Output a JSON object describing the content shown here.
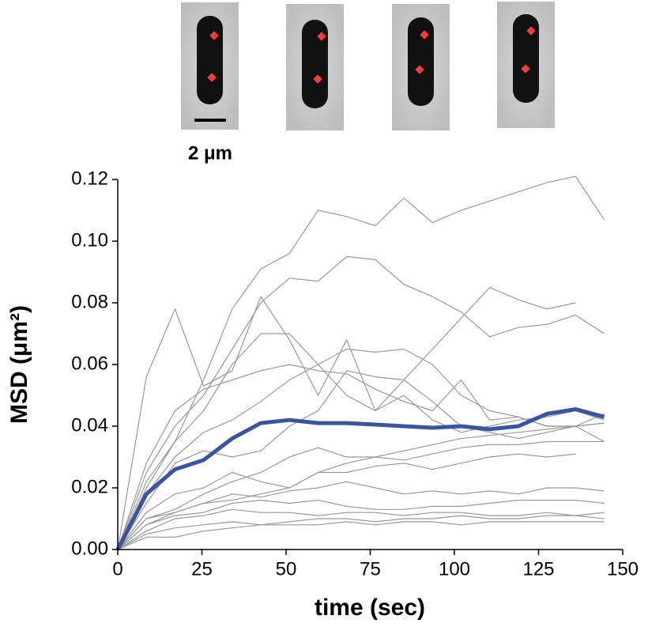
{
  "chart_data": {
    "type": "line",
    "annotation": "2 μm",
    "xlabel": "time (sec)",
    "ylabel": "MSD  (μm²)",
    "x": [
      0,
      8.5,
      17,
      25.5,
      34,
      42.5,
      51,
      59.5,
      68,
      76.5,
      85,
      93.5,
      102,
      110.5,
      119,
      127.5,
      136,
      144.5
    ],
    "xlim": [
      0,
      150
    ],
    "xticks": [
      0,
      25,
      50,
      75,
      100,
      125,
      150
    ],
    "ylim": [
      0,
      0.12
    ],
    "yticks": [
      {
        "value": 0,
        "label": "0.00"
      },
      {
        "value": 0.02,
        "label": "0.02"
      },
      {
        "value": 0.04,
        "label": "0.04"
      },
      {
        "value": 0.06,
        "label": "0.06"
      },
      {
        "value": 0.08,
        "label": "0.08"
      },
      {
        "value": 0.1,
        "label": "0.10"
      },
      {
        "value": 0.12,
        "label": "0.12"
      }
    ],
    "series": [
      {
        "color": "#999999",
        "width": 1.2,
        "values": [
          0,
          0.056,
          0.078,
          0.053,
          0.058,
          0.082,
          0.068,
          0.05,
          0.068,
          0.045,
          0.05,
          0.042,
          0.038,
          0.04,
          0.042,
          0.043,
          0.045,
          0.042
        ]
      },
      {
        "color": "#999999",
        "width": 1.2,
        "values": [
          0,
          0.022,
          0.035,
          0.055,
          0.078,
          0.091,
          0.096,
          0.11,
          0.108,
          0.105,
          0.114,
          0.106,
          0.11,
          0.113,
          0.116,
          0.119,
          0.121,
          0.107
        ]
      },
      {
        "color": "#999999",
        "width": 1.2,
        "values": [
          0,
          0.025,
          0.04,
          0.05,
          0.065,
          0.08,
          0.088,
          0.087,
          0.095,
          0.094,
          0.086,
          0.082,
          0.077,
          0.069,
          0.072,
          0.073,
          0.076,
          0.07
        ]
      },
      {
        "color": "#999999",
        "width": 1.2,
        "values": [
          0,
          0.02,
          0.035,
          0.045,
          0.06,
          0.07,
          0.07,
          0.06,
          0.05,
          0.045,
          0.055,
          0.065,
          0.075,
          0.085,
          0.081,
          0.078,
          0.08,
          null
        ]
      },
      {
        "color": "#999999",
        "width": 1.2,
        "values": [
          0,
          0.028,
          0.045,
          0.052,
          0.055,
          0.058,
          0.06,
          0.058,
          0.057,
          0.052,
          0.048,
          0.045,
          0.055,
          0.042,
          0.043,
          0.04,
          0.04,
          0.041
        ]
      },
      {
        "color": "#999999",
        "width": 1.2,
        "values": [
          0,
          0.018,
          0.03,
          0.038,
          0.042,
          0.048,
          0.055,
          0.06,
          0.065,
          0.064,
          0.065,
          0.06,
          0.05,
          0.045,
          0.043,
          0.04,
          0.04,
          0.044
        ]
      },
      {
        "color": "#999999",
        "width": 1.2,
        "values": [
          0,
          0.015,
          0.028,
          0.032,
          0.03,
          0.032,
          0.04,
          0.045,
          0.058,
          0.056,
          0.055,
          0.048,
          0.04,
          0.038,
          0.036,
          0.038,
          0.04,
          0.035
        ]
      },
      {
        "color": "#999999",
        "width": 1.2,
        "values": [
          0,
          0.01,
          0.013,
          0.018,
          0.022,
          0.025,
          0.03,
          0.033,
          0.03,
          0.03,
          0.032,
          0.034,
          0.036,
          0.037,
          0.038,
          0.039,
          0.04,
          0.041
        ]
      },
      {
        "color": "#999999",
        "width": 1.2,
        "values": [
          0,
          0.008,
          0.012,
          0.015,
          0.016,
          0.018,
          0.02,
          0.025,
          0.028,
          0.03,
          0.029,
          0.031,
          0.033,
          0.034,
          0.034,
          0.035,
          0.035,
          0.035
        ]
      },
      {
        "color": "#999999",
        "width": 1.2,
        "values": [
          0,
          0.012,
          0.018,
          0.02,
          0.025,
          0.022,
          0.02,
          0.025,
          0.025,
          0.027,
          0.028,
          0.026,
          0.028,
          0.03,
          0.031,
          0.03,
          0.031,
          null
        ]
      },
      {
        "color": "#999999",
        "width": 1.2,
        "values": [
          0,
          0.01,
          0.012,
          0.015,
          0.018,
          0.017,
          0.019,
          0.02,
          0.022,
          0.02,
          0.018,
          0.019,
          0.018,
          0.019,
          0.018,
          0.02,
          0.02,
          0.019
        ]
      },
      {
        "color": "#999999",
        "width": 1.2,
        "values": [
          0,
          0.008,
          0.011,
          0.012,
          0.015,
          0.016,
          0.015,
          0.016,
          0.014,
          0.013,
          0.013,
          0.014,
          0.014,
          0.015,
          0.016,
          0.016,
          0.016,
          0.015
        ]
      },
      {
        "color": "#999999",
        "width": 1.2,
        "values": [
          0,
          0.006,
          0.01,
          0.011,
          0.013,
          0.012,
          0.012,
          0.011,
          0.012,
          0.012,
          0.011,
          0.012,
          0.012,
          0.011,
          0.011,
          0.012,
          0.011,
          0.012
        ]
      },
      {
        "color": "#999999",
        "width": 1.2,
        "values": [
          0,
          0.005,
          0.007,
          0.008,
          0.009,
          0.008,
          0.009,
          0.01,
          0.01,
          0.009,
          0.01,
          0.01,
          0.011,
          0.01,
          0.01,
          0.011,
          0.011,
          0.01
        ]
      },
      {
        "color": "#999999",
        "width": 1.2,
        "values": [
          0,
          0.004,
          0.004,
          0.006,
          0.007,
          0.008,
          0.008,
          0.008,
          0.009,
          0.008,
          0.009,
          0.009,
          0.008,
          0.009,
          0.009,
          0.009,
          0.009,
          0.009
        ]
      },
      {
        "color": "#3a54a4",
        "width": 5,
        "values": [
          0,
          0.018,
          0.026,
          0.029,
          0.036,
          0.041,
          0.042,
          0.041,
          0.041,
          0.0405,
          0.04,
          0.0395,
          0.04,
          0.039,
          0.04,
          0.044,
          0.0455,
          0.043
        ]
      }
    ]
  }
}
